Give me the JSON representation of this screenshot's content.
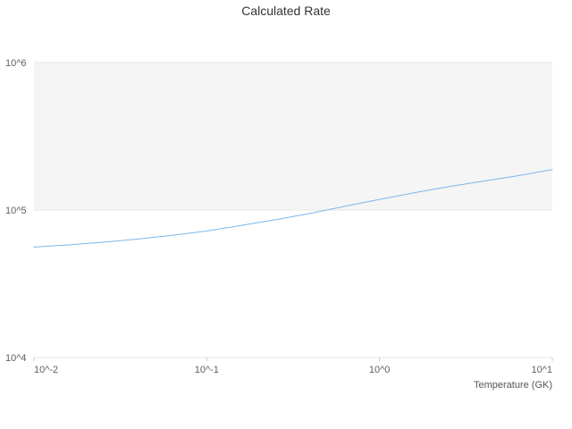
{
  "colors": {
    "line": "#7cb5ec",
    "band": "#f5f5f5",
    "grid": "#e6e6e6",
    "axis_tick": "#cccccc",
    "title_text": "#333333",
    "tick_text": "#606060"
  },
  "chart_data": {
    "type": "line",
    "title": "Calculated Rate",
    "xlabel": "Temperature (GK)",
    "ylabel": "",
    "x_scale": "log",
    "y_scale": "log",
    "xlim": [
      0.01,
      10
    ],
    "ylim": [
      10000,
      1000000
    ],
    "x_ticks": [
      "10^-2",
      "10^-1",
      "10^0",
      "10^1"
    ],
    "x_tick_values": [
      0.01,
      0.1,
      1,
      10
    ],
    "y_ticks": [
      "10^4",
      "10^5",
      "10^6"
    ],
    "y_tick_values": [
      10000,
      100000,
      1000000
    ],
    "shaded_band": {
      "y0": 100000,
      "y1": 1000000
    },
    "grid": "horizontal-only",
    "legend": "none",
    "series": [
      {
        "name": "Calculated Rate",
        "x": [
          0.01,
          0.0158,
          0.0251,
          0.0398,
          0.0631,
          0.1,
          0.158,
          0.251,
          0.398,
          0.631,
          1.0,
          1.58,
          2.51,
          3.98,
          6.31,
          10.0
        ],
        "y": [
          56000,
          58000,
          60500,
          63500,
          67500,
          72000,
          78500,
          86000,
          95000,
          106000,
          118000,
          131000,
          144000,
          157000,
          171000,
          188000
        ]
      }
    ]
  }
}
